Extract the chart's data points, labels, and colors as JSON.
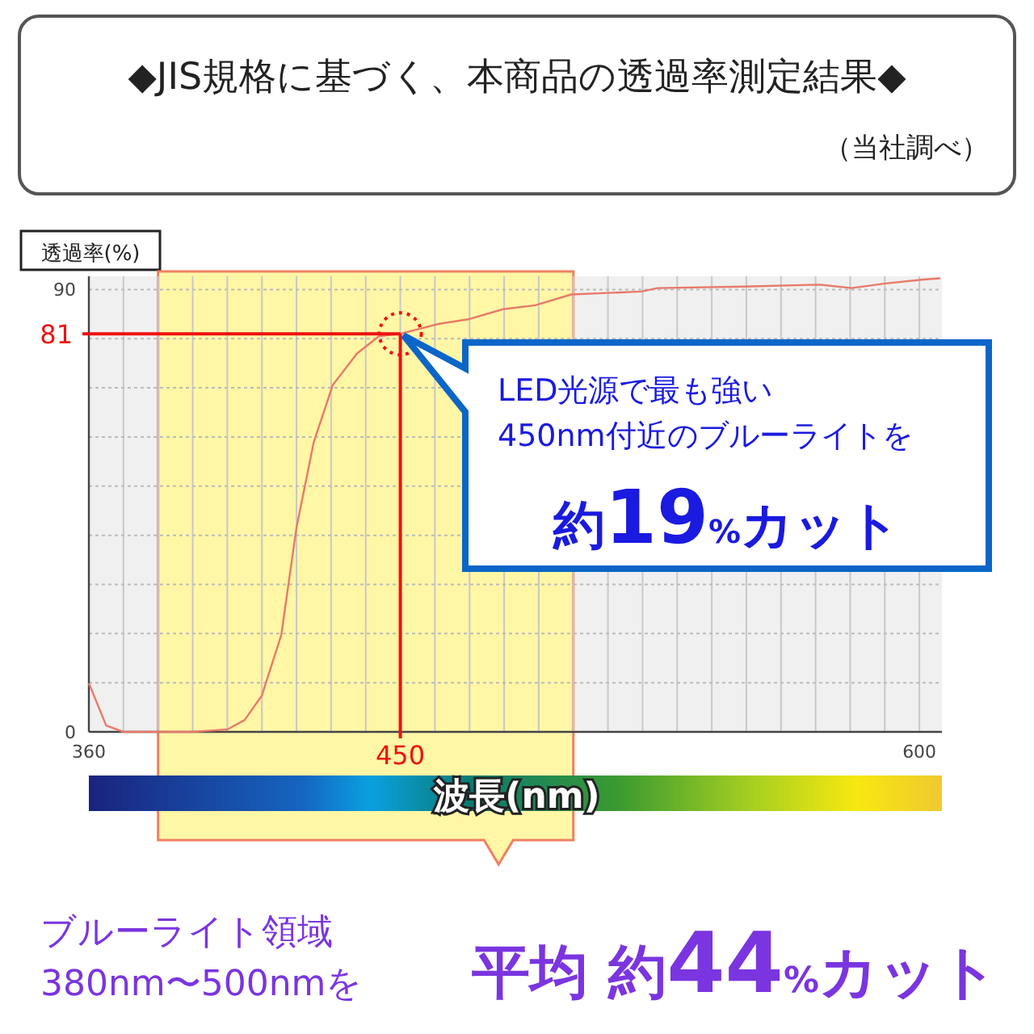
{
  "chart_data": {
    "type": "line",
    "title": "◆JIS規格に基づく、本商品の透過率測定結果◆",
    "subtitle": "（当社調べ）",
    "ylabel": "透過率(%)",
    "xlabel": "波長(nm)",
    "xlim": [
      360,
      606.5
    ],
    "ylim": [
      0,
      92.7
    ],
    "xticks": [
      360,
      {
        "value": 370,
        "label": null
      },
      {
        "value": 380,
        "label": null
      },
      {
        "value": 390,
        "label": null
      },
      {
        "value": 400,
        "label": null
      },
      {
        "value": 410,
        "label": null
      },
      {
        "value": 420,
        "label": null
      },
      {
        "value": 430,
        "label": null
      },
      {
        "value": 440,
        "label": null
      },
      {
        "value": 450,
        "label": null
      },
      {
        "value": 460,
        "label": null
      },
      {
        "value": 470,
        "label": null
      },
      {
        "value": 480,
        "label": null
      },
      {
        "value": 490,
        "label": null
      },
      {
        "value": 500,
        "label": null
      },
      {
        "value": 510,
        "label": null
      },
      {
        "value": 520,
        "label": null
      },
      {
        "value": 530,
        "label": null
      },
      {
        "value": 540,
        "label": null
      },
      {
        "value": 550,
        "label": null
      },
      {
        "value": 560,
        "label": null
      },
      {
        "value": 570,
        "label": null
      },
      {
        "value": 580,
        "label": null
      },
      {
        "value": 590,
        "label": null
      },
      600
    ],
    "yticks": [
      0,
      {
        "value": 10,
        "label": null
      },
      {
        "value": 20,
        "label": null
      },
      {
        "value": 30,
        "label": null
      },
      {
        "value": 40,
        "label": null
      },
      {
        "value": 50,
        "label": null
      },
      {
        "value": 60,
        "label": null
      },
      {
        "value": 70,
        "label": null
      },
      {
        "value": 80,
        "label": null
      },
      90
    ],
    "grid": true,
    "series": [
      {
        "color": "#e87a6a",
        "x": [
          360,
          365,
          370,
          380,
          390,
          400,
          405,
          410,
          415.6,
          420,
          425,
          430.5,
          437.5,
          443.8,
          450,
          455.5,
          461,
          470,
          479.7,
          489,
          499.4,
          519.7,
          524.3,
          549.3,
          571,
          580.4,
          589.8,
          600.6,
          606
        ],
        "values": [
          9.9,
          1.3,
          0,
          0,
          0,
          0.5,
          2.4,
          7.4,
          19.7,
          41.6,
          59,
          70.6,
          77,
          80.5,
          81,
          82,
          83,
          84,
          86,
          86.8,
          89,
          89.6,
          90.3,
          90.6,
          91,
          90.3,
          91.2,
          92,
          92.3
        ]
      }
    ],
    "ref_lines": [
      {
        "axis": "x",
        "value": 450,
        "label": "450",
        "color": "#ee1111"
      },
      {
        "axis": "y",
        "value": 81,
        "label": "81",
        "color": "#ee1111"
      }
    ],
    "bands": [
      {
        "axis": "x",
        "from": 380,
        "to": 500,
        "color": "#fff6a6"
      }
    ],
    "annotations": [
      "LED光源で最も強い",
      "450nm付近のブルーライトを",
      "約19%カット",
      "ブルーライト領域",
      "380nm〜500nmを",
      "平均 約44%カット"
    ]
  }
}
